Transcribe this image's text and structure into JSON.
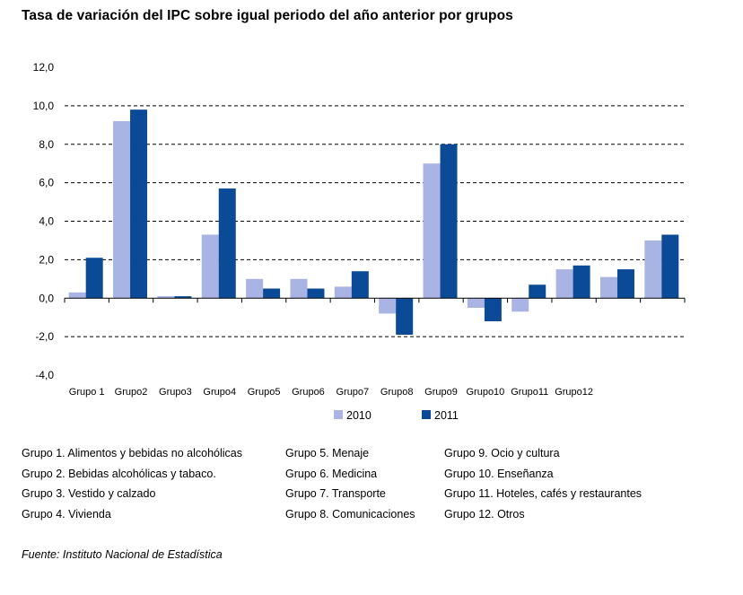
{
  "title": "Tasa de variación del IPC sobre igual periodo del año anterior por grupos",
  "chart_data": {
    "type": "bar",
    "categories": [
      "Grupo 1",
      "Grupo2",
      "Grupo3",
      "Grupo4",
      "Grupo5",
      "Grupo6",
      "Grupo7",
      "Grupo8",
      "Grupo9",
      "Grupo10",
      "Grupo11",
      "Grupo12",
      "",
      ""
    ],
    "series": [
      {
        "name": "2010",
        "color": "#aab4e4",
        "values": [
          0.3,
          9.2,
          0.1,
          3.3,
          1.0,
          1.0,
          0.6,
          -0.8,
          7.0,
          -0.5,
          -0.7,
          1.5,
          1.1,
          3.0
        ]
      },
      {
        "name": "2011",
        "color": "#0a4a96",
        "values": [
          2.1,
          9.8,
          0.1,
          5.7,
          0.5,
          0.5,
          1.4,
          -1.9,
          8.0,
          -1.2,
          0.7,
          1.7,
          1.5,
          3.3
        ]
      }
    ],
    "ylim": [
      -4.0,
      12.0
    ],
    "yticks": [
      "12,0",
      "10,0",
      "8,0",
      "6,0",
      "4,0",
      "2,0",
      "0,0",
      "-2,0",
      "-4,0"
    ],
    "grid": true,
    "legend": "bottom"
  },
  "notes": [
    [
      "Grupo 1. Alimentos y bebidas no alcohólicas",
      "Grupo 2. Bebidas alcohólicas y  tabaco.",
      "Grupo 3. Vestido y calzado",
      "Grupo 4. Vivienda"
    ],
    [
      "Grupo 5. Menaje",
      "Grupo 6. Medicina",
      "Grupo 7. Transporte",
      "Grupo 8. Comunicaciones"
    ],
    [
      "Grupo 9. Ocio y cultura",
      "Grupo 10. Enseñanza",
      "Grupo 11. Hoteles, cafés y restaurantes",
      "Grupo 12. Otros"
    ]
  ],
  "source": "Fuente: Instituto Nacional de Estadística"
}
